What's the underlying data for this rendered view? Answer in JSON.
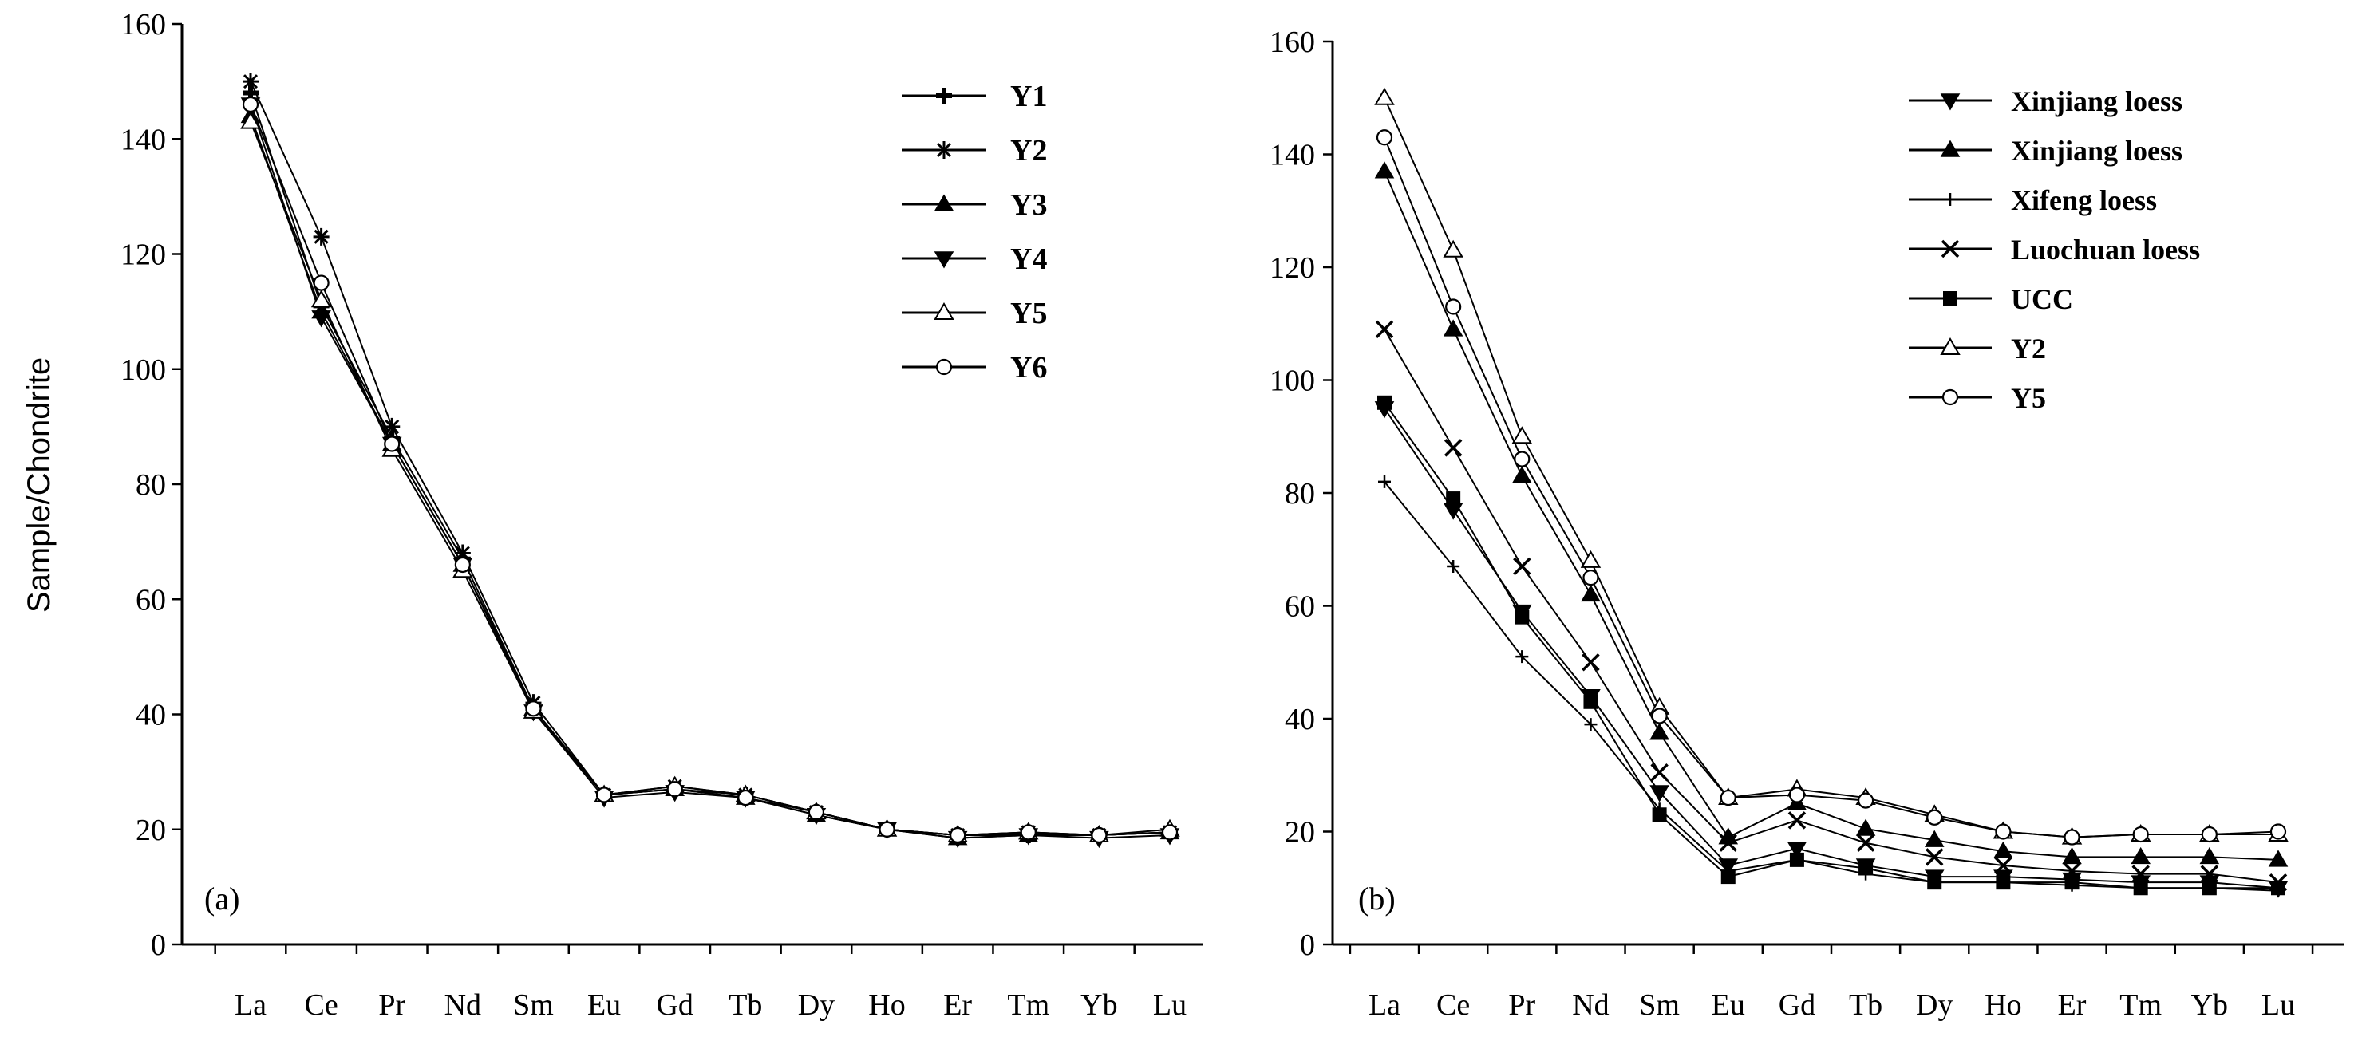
{
  "chart_data": [
    {
      "type": "line",
      "panel_label": "(a)",
      "ylabel": "Sample/Chondrite",
      "xlabel": "",
      "ylim": [
        0,
        160
      ],
      "yticks": [
        "0",
        "20",
        "40",
        "60",
        "80",
        "100",
        "120",
        "140",
        "160"
      ],
      "categories": [
        "La",
        "Ce",
        "Pr",
        "Nd",
        "Sm",
        "Eu",
        "Gd",
        "Tb",
        "Dy",
        "Ho",
        "Er",
        "Tm",
        "Yb",
        "Lu"
      ],
      "legend_position": "top-right",
      "series": [
        {
          "name": "Y1",
          "marker": "plus-filled",
          "values": [
            148,
            111,
            88,
            67,
            41,
            26,
            27,
            26,
            23,
            20,
            19,
            19,
            19,
            19.5
          ]
        },
        {
          "name": "Y2",
          "marker": "star",
          "values": [
            150,
            123,
            90,
            68,
            42,
            26,
            27.5,
            26,
            23,
            20,
            19,
            19.5,
            19,
            19.5
          ]
        },
        {
          "name": "Y3",
          "marker": "triangle-up-filled",
          "values": [
            144,
            110,
            87,
            66,
            41,
            26,
            27,
            25.5,
            22.5,
            20,
            18.5,
            19,
            19,
            19.5
          ]
        },
        {
          "name": "Y4",
          "marker": "triangle-down-filled",
          "values": [
            146,
            109,
            87,
            66,
            40.5,
            25.5,
            26.5,
            25.5,
            22.5,
            20,
            18.5,
            19,
            18.5,
            19
          ]
        },
        {
          "name": "Y5",
          "marker": "triangle-up-open",
          "values": [
            143,
            112,
            86,
            65,
            40.5,
            26,
            27.5,
            26,
            23,
            20,
            19,
            19.5,
            19,
            20
          ]
        },
        {
          "name": "Y6",
          "marker": "circle-open",
          "values": [
            146,
            115,
            87,
            66,
            41,
            26,
            27,
            25.5,
            23,
            20,
            19,
            19.5,
            19,
            19.5
          ]
        }
      ]
    },
    {
      "type": "line",
      "panel_label": "(b)",
      "ylabel": "",
      "xlabel": "",
      "ylim": [
        0,
        160
      ],
      "yticks": [
        "0",
        "20",
        "40",
        "60",
        "80",
        "100",
        "120",
        "140",
        "160"
      ],
      "categories": [
        "La",
        "Ce",
        "Pr",
        "Nd",
        "Sm",
        "Eu",
        "Gd",
        "Tb",
        "Dy",
        "Ho",
        "Er",
        "Tm",
        "Yb",
        "Lu"
      ],
      "legend_position": "top-right",
      "series": [
        {
          "name": "Xinjiang loess",
          "marker": "triangle-down-filled",
          "values": [
            95,
            77,
            59,
            44,
            27,
            14,
            17,
            14,
            12,
            12,
            11.5,
            11,
            11,
            10
          ]
        },
        {
          "name": "Xinjiang loess",
          "marker": "triangle-up-filled",
          "values": [
            137,
            109,
            83,
            62,
            37.5,
            19,
            25,
            20.5,
            18.5,
            16.5,
            15.5,
            15.5,
            15.5,
            15
          ]
        },
        {
          "name": "Xifeng loess",
          "marker": "plus",
          "values": [
            82,
            67,
            51,
            39,
            24,
            13,
            15,
            12.5,
            11,
            11,
            10.5,
            10,
            10,
            9.5
          ]
        },
        {
          "name": "Luochuan loess",
          "marker": "x",
          "values": [
            109,
            88,
            67,
            50,
            30.5,
            18,
            22,
            18,
            15.5,
            14,
            13,
            12.5,
            12.5,
            11
          ]
        },
        {
          "name": "UCC",
          "marker": "square-filled",
          "values": [
            96,
            79,
            58,
            43,
            23,
            12,
            15,
            13.5,
            11,
            11,
            11,
            10,
            10,
            10
          ]
        },
        {
          "name": "Y2",
          "marker": "triangle-up-open",
          "values": [
            150,
            123,
            90,
            68,
            42,
            26,
            27.5,
            26,
            23,
            20,
            19,
            19.5,
            19.5,
            19.5
          ]
        },
        {
          "name": "Y5",
          "marker": "circle-open",
          "values": [
            143,
            113,
            86,
            65,
            40.5,
            26,
            26.5,
            25.5,
            22.5,
            20,
            19,
            19.5,
            19.5,
            20
          ]
        }
      ]
    }
  ]
}
